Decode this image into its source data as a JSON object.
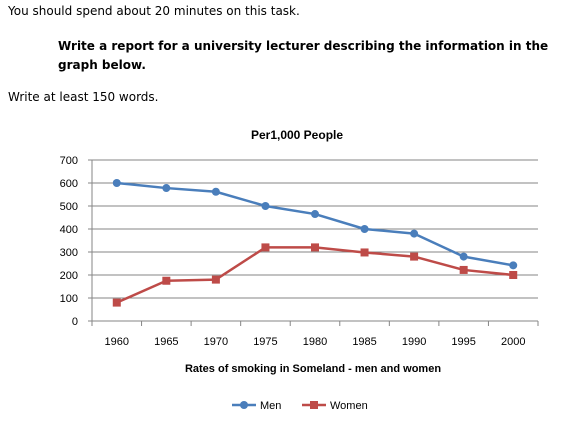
{
  "prompt": {
    "intro": "You should spend about 20 minutes on this task.",
    "task": "Write a report for a university lecturer describing the information in the graph below.",
    "word_count": "Write at least 150 words."
  },
  "chart_data": {
    "type": "line",
    "title": "Per1,000 People",
    "xlabel": "Rates of smoking  in Someland - men and women",
    "ylabel": "",
    "categories": [
      "1960",
      "1965",
      "1970",
      "1975",
      "1980",
      "1985",
      "1990",
      "1995",
      "2000"
    ],
    "y_ticks": [
      "0",
      "100",
      "200",
      "300",
      "400",
      "500",
      "600",
      "700"
    ],
    "ylim": [
      0,
      700
    ],
    "grid": true,
    "legend_position": "bottom",
    "series": [
      {
        "name": "Men",
        "marker": "circle",
        "color": "#4a7ebb",
        "values": [
          600,
          578,
          562,
          500,
          465,
          400,
          380,
          280,
          242
        ]
      },
      {
        "name": "Women",
        "marker": "square",
        "color": "#be4b48",
        "values": [
          80,
          175,
          180,
          320,
          320,
          298,
          280,
          222,
          200
        ]
      }
    ]
  }
}
